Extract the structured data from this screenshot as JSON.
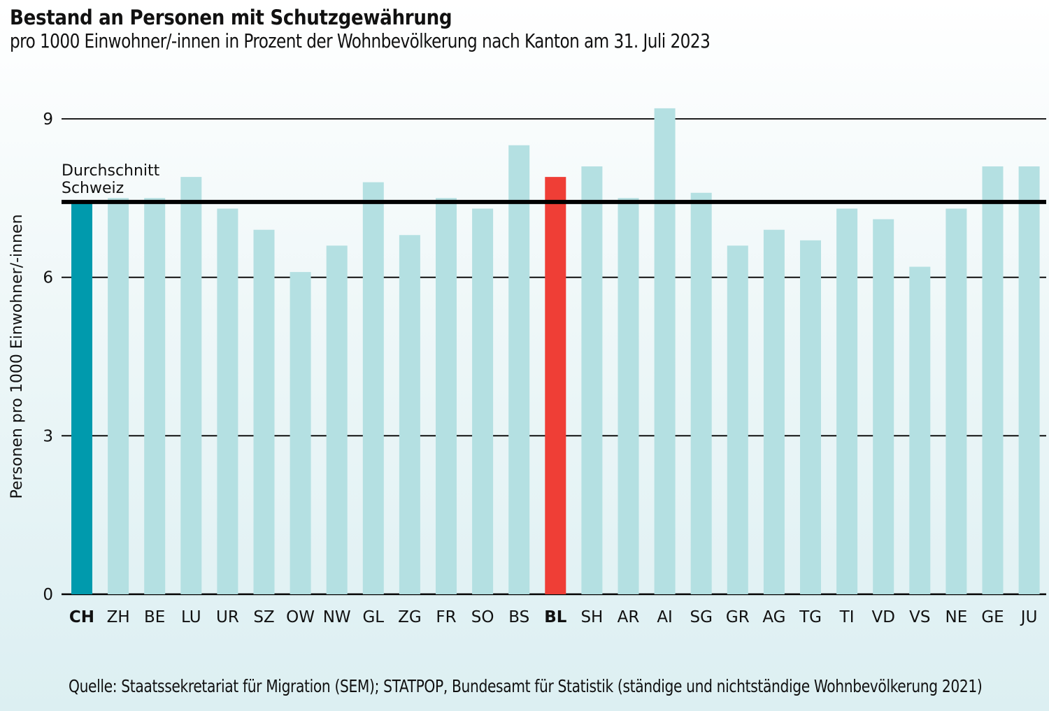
{
  "title": "Bestand an Personen mit Schutzgewährung",
  "subtitle": "pro 1000 Einwohner/-innen in Prozent der Wohnbevölkerung nach Kanton am 31. Juli 2023",
  "source": "Quelle: Staatssekretariat für Migration (SEM); STATPOP, Bundesamt für Statistik (ständige und nichtständige Wohnbevölkerung 2021)",
  "colors": {
    "ch": "#009aad",
    "bl": "#ef3e36",
    "default": "#b4e0e2",
    "average_line": "#000000",
    "grid": "#000000"
  },
  "chart_data": {
    "type": "bar",
    "title": "Bestand an Personen mit Schutzgewährung",
    "ylabel": "Personen pro 1000 Einwohner/-innen",
    "xlabel": "",
    "ylim": [
      0,
      9.5
    ],
    "yticks": [
      0,
      3,
      6,
      9
    ],
    "grid": true,
    "categories": [
      "CH",
      "ZH",
      "BE",
      "LU",
      "UR",
      "SZ",
      "OW",
      "NW",
      "GL",
      "ZG",
      "FR",
      "SO",
      "BS",
      "BL",
      "SH",
      "AR",
      "AI",
      "SG",
      "GR",
      "AG",
      "TG",
      "TI",
      "VD",
      "VS",
      "NE",
      "GE",
      "JU"
    ],
    "values": [
      7.4,
      7.5,
      7.5,
      7.9,
      7.3,
      6.9,
      6.1,
      6.6,
      7.8,
      6.8,
      7.5,
      7.3,
      8.5,
      7.9,
      8.1,
      7.5,
      9.2,
      7.6,
      6.6,
      6.9,
      6.7,
      7.3,
      7.1,
      6.2,
      7.3,
      8.1,
      8.1
    ],
    "highlight": {
      "CH": "ch",
      "BL": "bl"
    },
    "bold_categories": [
      "CH",
      "BL"
    ],
    "reference_line": {
      "value": 7.4,
      "label_lines": [
        "Durchschnitt",
        "Schweiz"
      ]
    }
  }
}
